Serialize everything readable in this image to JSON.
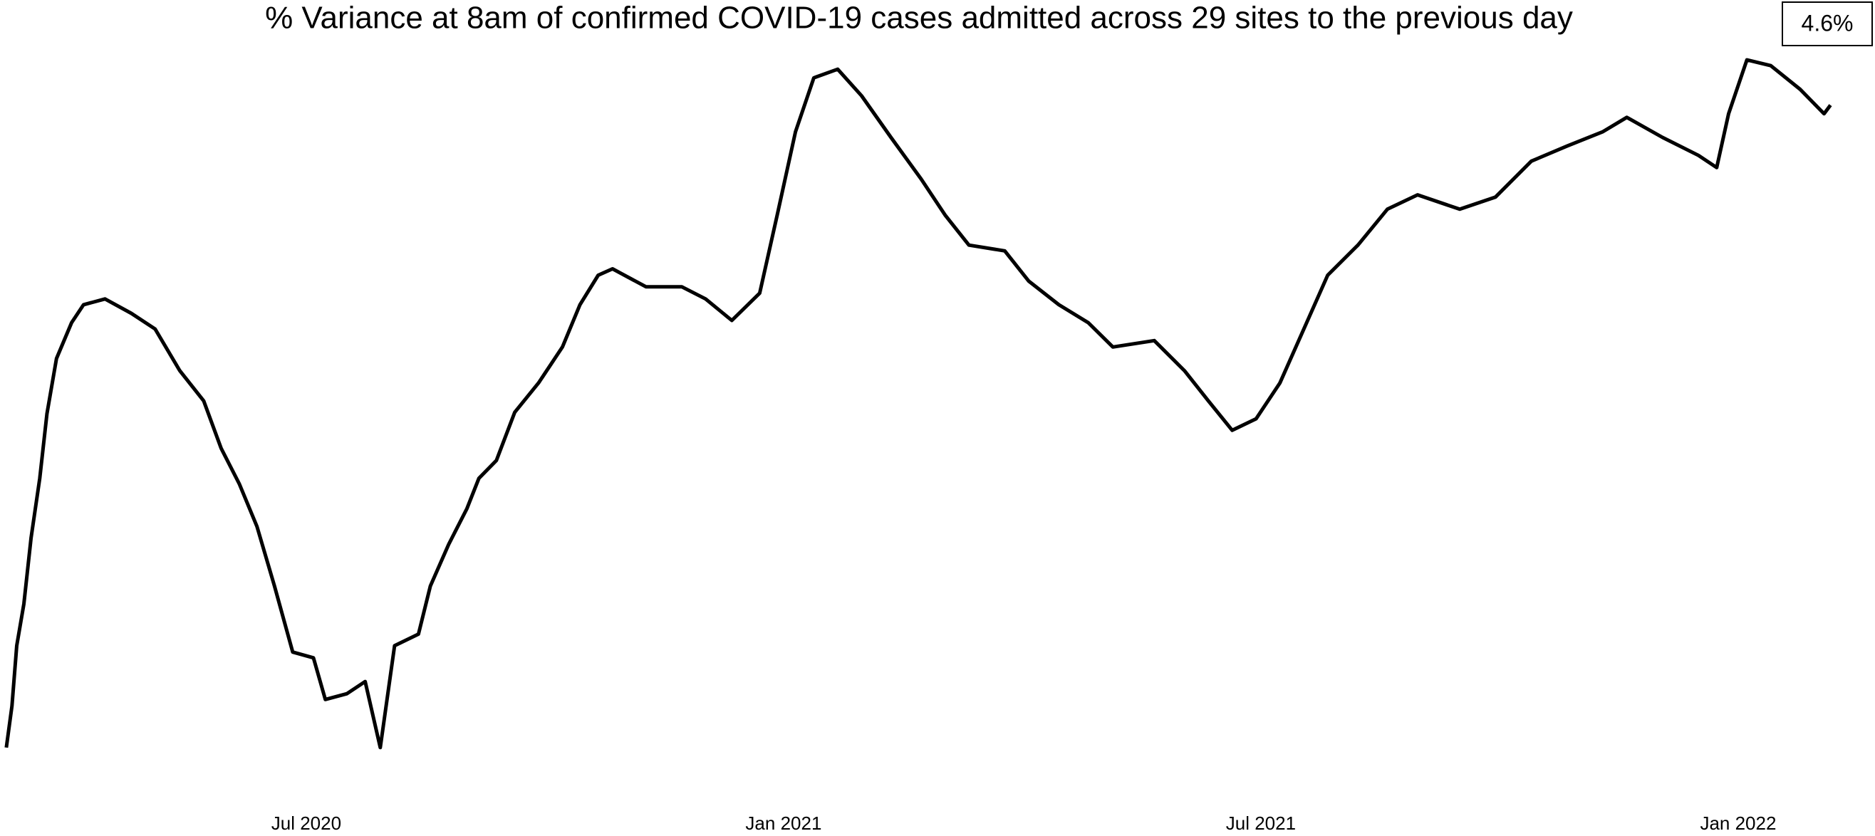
{
  "chart_data": {
    "type": "line",
    "title": "% Variance at 8am of confirmed COVID-19 cases admitted across 29 sites to the previous day",
    "annotation": "4.6%",
    "color": "#000000",
    "x": [
      2.23,
      2.3,
      2.36,
      2.45,
      2.54,
      2.65,
      2.74,
      2.86,
      3.05,
      3.2,
      3.47,
      3.8,
      4.1,
      4.41,
      4.71,
      4.93,
      5.16,
      5.38,
      5.6,
      5.83,
      6.09,
      6.24,
      6.51,
      6.74,
      6.93,
      7.11,
      7.41,
      7.56,
      7.79,
      8.02,
      8.17,
      8.39,
      8.62,
      8.92,
      9.22,
      9.44,
      9.67,
      9.85,
      10.27,
      10.72,
      11.02,
      11.35,
      11.7,
      11.92,
      12.15,
      12.38,
      12.68,
      12.98,
      13.35,
      13.73,
      14.03,
      14.33,
      14.78,
      15.08,
      15.46,
      15.83,
      16.14,
      16.66,
      17.04,
      17.34,
      17.64,
      17.94,
      18.24,
      18.54,
      18.84,
      19.22,
      19.59,
      19.97,
      20.5,
      20.95,
      21.4,
      21.85,
      22.3,
      22.6,
      23.05,
      23.5,
      23.73,
      23.88,
      24.11,
      24.41,
      24.78,
      25.08,
      25.16
    ],
    "values": [
      2.5,
      8.3,
      16.7,
      22.5,
      31.7,
      40,
      49,
      56.7,
      61.7,
      64.2,
      65,
      63,
      60.8,
      55,
      50.8,
      44.2,
      39.2,
      33.3,
      25,
      15.8,
      15,
      9.2,
      10,
      11.7,
      2.5,
      16.7,
      18.3,
      25,
      30.8,
      35.8,
      40,
      42.5,
      49.2,
      53.3,
      58.3,
      64.2,
      68.3,
      69.2,
      66.7,
      66.7,
      65,
      62,
      65.8,
      76.7,
      88.3,
      95.8,
      97,
      93.3,
      87.5,
      81.7,
      76.7,
      72.5,
      71.7,
      67.5,
      64.2,
      61.7,
      58.3,
      59.2,
      55,
      50.8,
      46.7,
      48.3,
      53.3,
      60.8,
      68.3,
      72.5,
      77.5,
      79.5,
      77.5,
      79.2,
      84.2,
      86.3,
      88.3,
      90.3,
      87.5,
      85,
      83.3,
      90.8,
      98.3,
      97.5,
      94.2,
      90.8,
      92
    ],
    "xlim": [
      2.15,
      25.72
    ],
    "ylim": [
      0,
      100
    ],
    "xticks": [
      {
        "value": 6,
        "label": "Jul 2020"
      },
      {
        "value": 12,
        "label": "Jan 2021"
      },
      {
        "value": 18,
        "label": "Jul 2021"
      },
      {
        "value": 24,
        "label": "Jan 2022"
      }
    ]
  }
}
